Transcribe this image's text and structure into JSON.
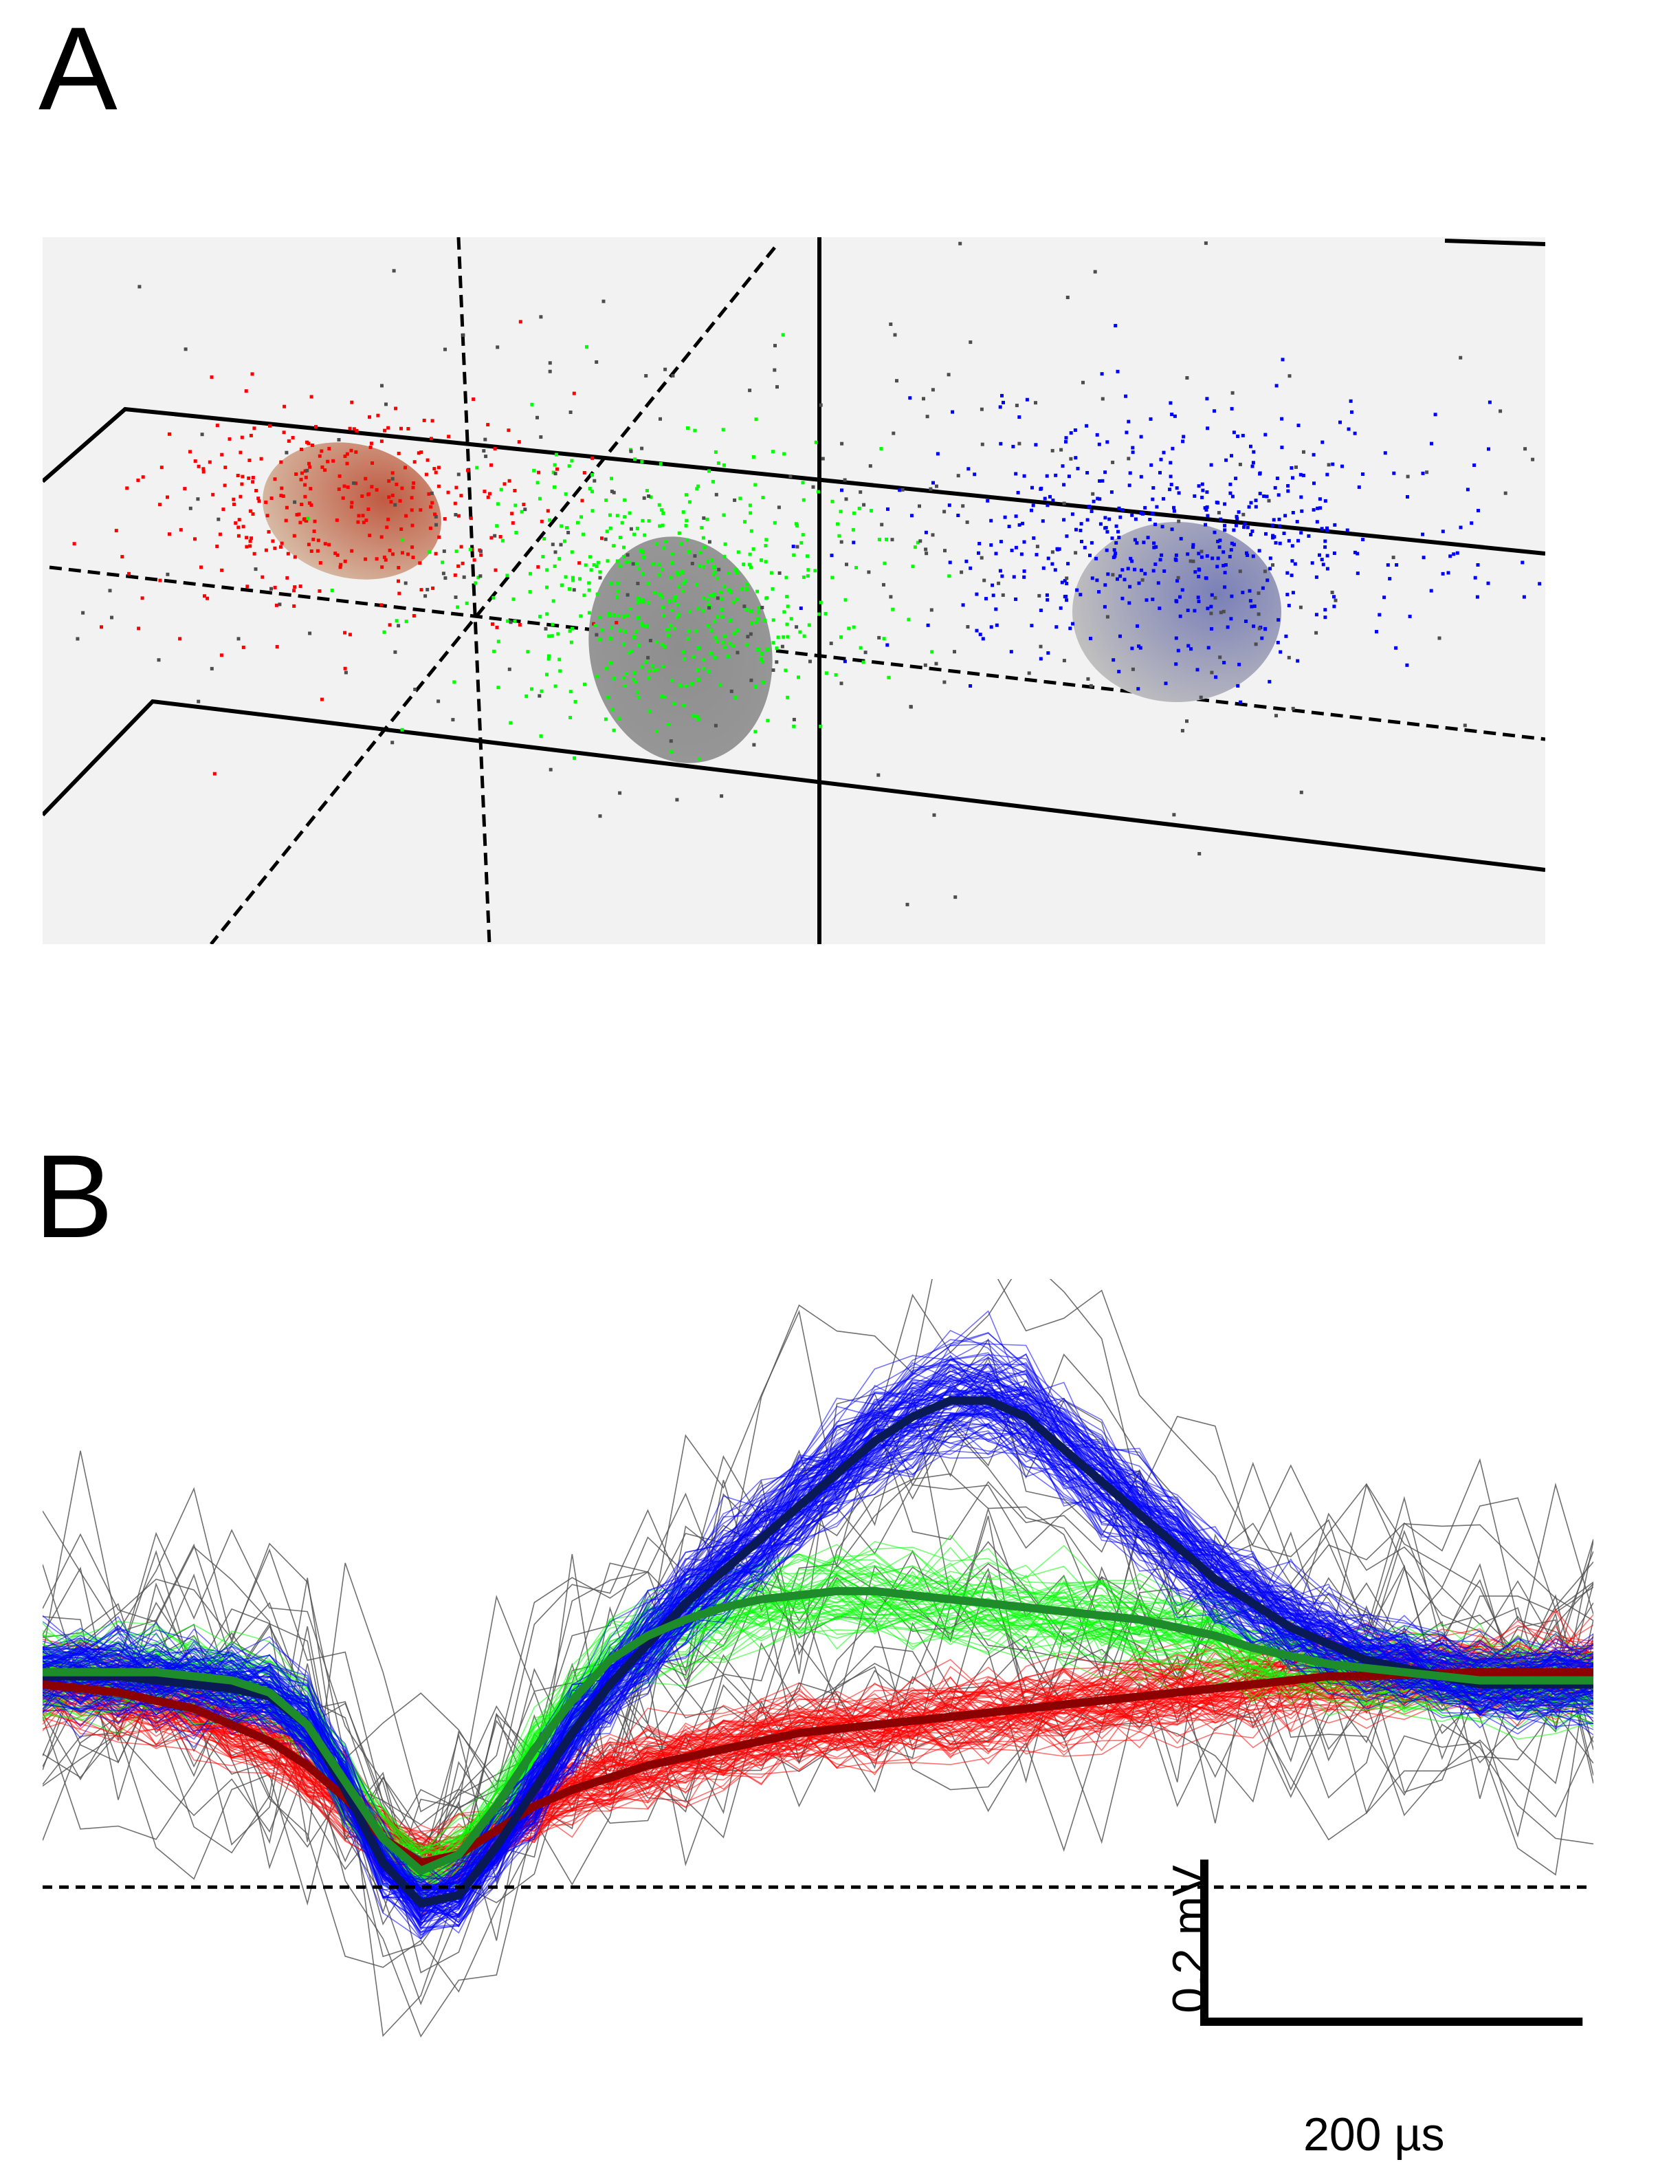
{
  "panels": {
    "a": {
      "label": "A"
    },
    "b": {
      "label": "B"
    }
  },
  "colors": {
    "background_3d": "#f2f2f2",
    "cluster_red": "#ff0000",
    "cluster_green": "#00ff00",
    "cluster_blue": "#0000ff",
    "noise_gray": "#4d4d4d",
    "mean_red": "#8b0000",
    "mean_green": "#1e8c2a",
    "mean_blue": "#0a1a55"
  },
  "chart_data": [
    {
      "type": "scatter",
      "panel": "A",
      "title": "",
      "xlabel": "",
      "ylabel": "",
      "grid": false,
      "series": [
        {
          "name": "",
          "color": "#ff0000",
          "center": [
            0.2,
            0.62
          ],
          "spread": [
            0.07,
            0.08
          ],
          "points": 320
        },
        {
          "name": "",
          "color": "#00ff00",
          "center": [
            0.42,
            0.5
          ],
          "spread": [
            0.07,
            0.1
          ],
          "points": 480
        },
        {
          "name": "",
          "color": "#0000ff",
          "center": [
            0.75,
            0.58
          ],
          "spread": [
            0.09,
            0.09
          ],
          "points": 520
        },
        {
          "name": "",
          "color": "#4d4d4d",
          "center": [
            0.5,
            0.55
          ],
          "spread": [
            0.25,
            0.2
          ],
          "points": 300
        }
      ]
    },
    {
      "type": "line",
      "panel": "B",
      "title": "",
      "xlabel": "",
      "ylabel": "",
      "x_unit": "µs",
      "y_unit": "mV",
      "xlim": [
        0,
        820
      ],
      "ylim": [
        -0.2,
        0.75
      ],
      "baseline": 0,
      "x": [
        0,
        20,
        40,
        60,
        80,
        100,
        120,
        140,
        160,
        180,
        200,
        220,
        240,
        260,
        280,
        300,
        320,
        340,
        360,
        380,
        400,
        420,
        440,
        460,
        480,
        500,
        520,
        540,
        560,
        580,
        600,
        620,
        640,
        660,
        680,
        700,
        720,
        740,
        760,
        780,
        800,
        820
      ],
      "series": [
        {
          "name": "",
          "color": "#0000ff",
          "mean": [
            0.26,
            0.26,
            0.26,
            0.255,
            0.25,
            0.245,
            0.235,
            0.2,
            0.12,
            0.03,
            -0.02,
            -0.01,
            0.05,
            0.12,
            0.19,
            0.25,
            0.3,
            0.35,
            0.39,
            0.43,
            0.47,
            0.51,
            0.55,
            0.58,
            0.6,
            0.6,
            0.58,
            0.54,
            0.5,
            0.46,
            0.42,
            0.38,
            0.35,
            0.32,
            0.3,
            0.28,
            0.27,
            0.26,
            0.25,
            0.25,
            0.25,
            0.25
          ],
          "spread": 0.05,
          "traces": 120
        },
        {
          "name": "",
          "color": "#00ff00",
          "mean": [
            0.265,
            0.265,
            0.265,
            0.265,
            0.26,
            0.255,
            0.24,
            0.2,
            0.13,
            0.06,
            0.02,
            0.04,
            0.1,
            0.17,
            0.23,
            0.28,
            0.31,
            0.33,
            0.345,
            0.355,
            0.36,
            0.365,
            0.365,
            0.36,
            0.355,
            0.35,
            0.345,
            0.34,
            0.335,
            0.33,
            0.32,
            0.31,
            0.295,
            0.285,
            0.275,
            0.27,
            0.265,
            0.26,
            0.255,
            0.255,
            0.255,
            0.255
          ],
          "spread": 0.05,
          "traces": 60
        },
        {
          "name": "",
          "color": "#ff0000",
          "mean": [
            0.25,
            0.245,
            0.24,
            0.23,
            0.22,
            0.2,
            0.18,
            0.15,
            0.11,
            0.06,
            0.03,
            0.04,
            0.07,
            0.1,
            0.12,
            0.135,
            0.15,
            0.16,
            0.17,
            0.18,
            0.19,
            0.195,
            0.2,
            0.205,
            0.21,
            0.215,
            0.22,
            0.225,
            0.23,
            0.235,
            0.24,
            0.245,
            0.25,
            0.255,
            0.26,
            0.26,
            0.262,
            0.264,
            0.265,
            0.265,
            0.265,
            0.265
          ],
          "spread": 0.05,
          "traces": 90
        }
      ],
      "scale_bar": {
        "y_value": 0.2,
        "y_label": "0.2 mV",
        "x_value": 200,
        "x_label": "200 µs"
      }
    }
  ]
}
